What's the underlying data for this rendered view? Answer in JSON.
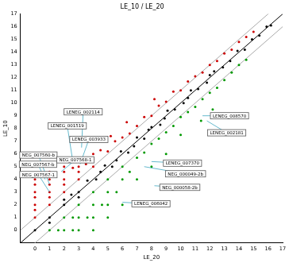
{
  "chart_data": {
    "type": "scatter",
    "title": "LE_10 / LE_20",
    "x_label": "LE_20",
    "y_label": "LE_10",
    "xlim": [
      -1,
      17
    ],
    "xticks": [
      0,
      1,
      2,
      3,
      4,
      5,
      6,
      7,
      8,
      9,
      10,
      11,
      12,
      13,
      14,
      15,
      16,
      17
    ],
    "ylim": [
      -1,
      17
    ],
    "yticks": [
      0,
      1,
      2,
      3,
      4,
      5,
      6,
      7,
      8,
      9,
      10,
      11,
      12,
      13,
      14,
      15,
      16,
      17
    ],
    "grid": false,
    "series": [
      {
        "color": "#000000",
        "marker": "circle",
        "points": [
          [
            0,
            0
          ],
          [
            1,
            1
          ],
          [
            1,
            0.6
          ],
          [
            2,
            2
          ],
          [
            2,
            2.4
          ],
          [
            3,
            3
          ],
          [
            3,
            2.6
          ],
          [
            3.6,
            3.9
          ],
          [
            4.2,
            4
          ],
          [
            4.8,
            5.1
          ],
          [
            5.3,
            5
          ],
          [
            5.9,
            6.2
          ],
          [
            6.4,
            6.1
          ],
          [
            7,
            7.3
          ],
          [
            7.5,
            7.2
          ],
          [
            8,
            8.1
          ],
          [
            8.6,
            8.3
          ],
          [
            9.1,
            9.4
          ],
          [
            9.6,
            9.5
          ],
          [
            10.2,
            10
          ],
          [
            10.7,
            11
          ],
          [
            11.2,
            11.1
          ],
          [
            11.8,
            11.6
          ],
          [
            12.3,
            12.5
          ],
          [
            12.9,
            12.8
          ],
          [
            13.4,
            13.3
          ],
          [
            13.9,
            14.1
          ],
          [
            14.4,
            14.2
          ],
          [
            14.9,
            15
          ],
          [
            15.4,
            15.3
          ],
          [
            15.9,
            16
          ],
          [
            16.2,
            16.1
          ],
          [
            6.8,
            6.6
          ],
          [
            8.9,
            8.8
          ],
          [
            10.5,
            10.4
          ],
          [
            12,
            12.2
          ],
          [
            4.5,
            4.6
          ],
          [
            2.5,
            2.8
          ],
          [
            5.6,
            5.5
          ],
          [
            7.8,
            7.9
          ]
        ]
      },
      {
        "color": "#cc0000",
        "marker": "circle",
        "points": [
          [
            0,
            1
          ],
          [
            0,
            1.6
          ],
          [
            0,
            2
          ],
          [
            0,
            2.6
          ],
          [
            0,
            3
          ],
          [
            0,
            3.6
          ],
          [
            0,
            4
          ],
          [
            1,
            2
          ],
          [
            1,
            2.6
          ],
          [
            1,
            3
          ],
          [
            1,
            3.6
          ],
          [
            1,
            4
          ],
          [
            1,
            4.6
          ],
          [
            2,
            3
          ],
          [
            2,
            3.6
          ],
          [
            2,
            4
          ],
          [
            2,
            4.6
          ],
          [
            2,
            5
          ],
          [
            3,
            4
          ],
          [
            3,
            4.6
          ],
          [
            3,
            5
          ],
          [
            3,
            5.6
          ],
          [
            4,
            5
          ],
          [
            4,
            5.6
          ],
          [
            4,
            6
          ],
          [
            4.5,
            6.3
          ],
          [
            5,
            6.2
          ],
          [
            5.5,
            7
          ],
          [
            6,
            7.3
          ],
          [
            6.5,
            7.6
          ],
          [
            7,
            8.2
          ],
          [
            7.5,
            8.9
          ],
          [
            8,
            9
          ],
          [
            8.5,
            9.8
          ],
          [
            9,
            10.1
          ],
          [
            9.5,
            10.9
          ],
          [
            10,
            11
          ],
          [
            10.5,
            11.7
          ],
          [
            11,
            12.1
          ],
          [
            11.5,
            12.4
          ],
          [
            12,
            13
          ],
          [
            12.5,
            13.3
          ],
          [
            13,
            13.9
          ],
          [
            13.5,
            14.2
          ],
          [
            14,
            14.8
          ],
          [
            14.5,
            15.2
          ],
          [
            15,
            15.6
          ],
          [
            3.5,
            5.2
          ],
          [
            5.2,
            7.4
          ],
          [
            6.3,
            8.5
          ],
          [
            8.2,
            10.3
          ],
          [
            2.6,
            4.9
          ]
        ]
      },
      {
        "color": "#009900",
        "marker": "circle",
        "points": [
          [
            1,
            0
          ],
          [
            1.6,
            0
          ],
          [
            2,
            0
          ],
          [
            2.6,
            0
          ],
          [
            3,
            0
          ],
          [
            4,
            0
          ],
          [
            2,
            1
          ],
          [
            2.6,
            1
          ],
          [
            3,
            1
          ],
          [
            3.6,
            1
          ],
          [
            4,
            1
          ],
          [
            3,
            2
          ],
          [
            4,
            2
          ],
          [
            4.6,
            2
          ],
          [
            5,
            2
          ],
          [
            4,
            3
          ],
          [
            5,
            3
          ],
          [
            5.6,
            3
          ],
          [
            5,
            4
          ],
          [
            6,
            4
          ],
          [
            6.5,
            4.6
          ],
          [
            6,
            5
          ],
          [
            7,
            5.7
          ],
          [
            7.5,
            6.1
          ],
          [
            8,
            6.8
          ],
          [
            8.5,
            7.2
          ],
          [
            9,
            7.7
          ],
          [
            9.5,
            8.2
          ],
          [
            10,
            8.9
          ],
          [
            10.5,
            9.3
          ],
          [
            11,
            9.7
          ],
          [
            11.5,
            10.3
          ],
          [
            12,
            10.8
          ],
          [
            12.5,
            11.2
          ],
          [
            13,
            11.8
          ],
          [
            13.5,
            12.4
          ],
          [
            14,
            13
          ],
          [
            14.5,
            13.4
          ],
          [
            7,
            4
          ],
          [
            8,
            5
          ],
          [
            9,
            6
          ],
          [
            10,
            7.5
          ],
          [
            11.4,
            8.6
          ],
          [
            12.2,
            9.5
          ],
          [
            6,
            2
          ],
          [
            5,
            1
          ]
        ]
      }
    ],
    "reference_lines": [
      {
        "slope": 1,
        "intercept": 0,
        "color": "#000000"
      },
      {
        "slope": 1,
        "intercept": 1,
        "color": "#aaaaaa"
      },
      {
        "slope": 1,
        "intercept": -1,
        "color": "#aaaaaa"
      }
    ],
    "annotations": [
      {
        "text": "LENEG_002114",
        "x": 3.2,
        "y": 6.5
      },
      {
        "text": "LENEG_001519",
        "x": 2.6,
        "y": 5.4
      },
      {
        "text": "LENEG_003933",
        "x": 3.1,
        "y": 5.2
      },
      {
        "text": "NEG_007560-b",
        "x": 1,
        "y": 3.6
      },
      {
        "text": "NEG_007568-1",
        "x": 1.8,
        "y": 4.6
      },
      {
        "text": "NEG_007567-b",
        "x": 0.7,
        "y": 4
      },
      {
        "text": "NEG_007567-1",
        "x": 1,
        "y": 3
      },
      {
        "text": "LENEG_008570",
        "x": 11.5,
        "y": 9
      },
      {
        "text": "LENEG_002181",
        "x": 11.8,
        "y": 8.6
      },
      {
        "text": "LENEG_007370",
        "x": 8,
        "y": 5.4
      },
      {
        "text": "NEG_000049-2b",
        "x": 7.5,
        "y": 5
      },
      {
        "text": "NEG_000058-2b",
        "x": 8.2,
        "y": 3.5
      },
      {
        "text": "LENEG_006042",
        "x": 6,
        "y": 2.2
      }
    ]
  }
}
